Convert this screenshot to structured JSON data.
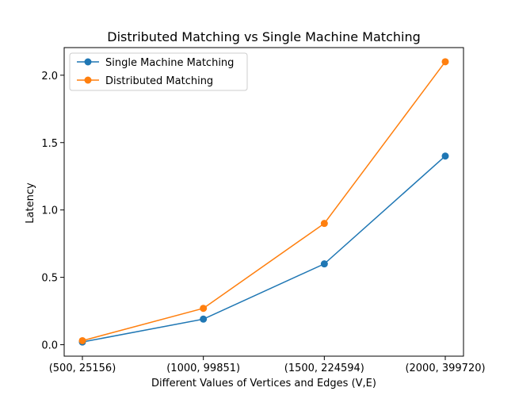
{
  "chart_data": {
    "type": "line",
    "title": "Distributed Matching vs Single Machine Matching",
    "xlabel": "Different Values of Vertices and Edges (V,E)",
    "ylabel": "Latency",
    "categories": [
      "(500, 25156)",
      "(1000, 99851)",
      "(1500, 224594)",
      "(2000, 399720)"
    ],
    "ylim": [
      -0.085,
      2.205
    ],
    "yticks": [
      0.0,
      0.5,
      1.0,
      1.5,
      2.0
    ],
    "ytick_labels": [
      "0.0",
      "0.5",
      "1.0",
      "1.5",
      "2.0"
    ],
    "grid": false,
    "legend_position": "top-left",
    "series": [
      {
        "name": "Single Machine Matching",
        "color": "#1f77b4",
        "values": [
          0.02,
          0.19,
          0.6,
          1.4
        ]
      },
      {
        "name": "Distributed Matching",
        "color": "#ff7f0e",
        "values": [
          0.03,
          0.27,
          0.9,
          2.1
        ]
      }
    ]
  }
}
